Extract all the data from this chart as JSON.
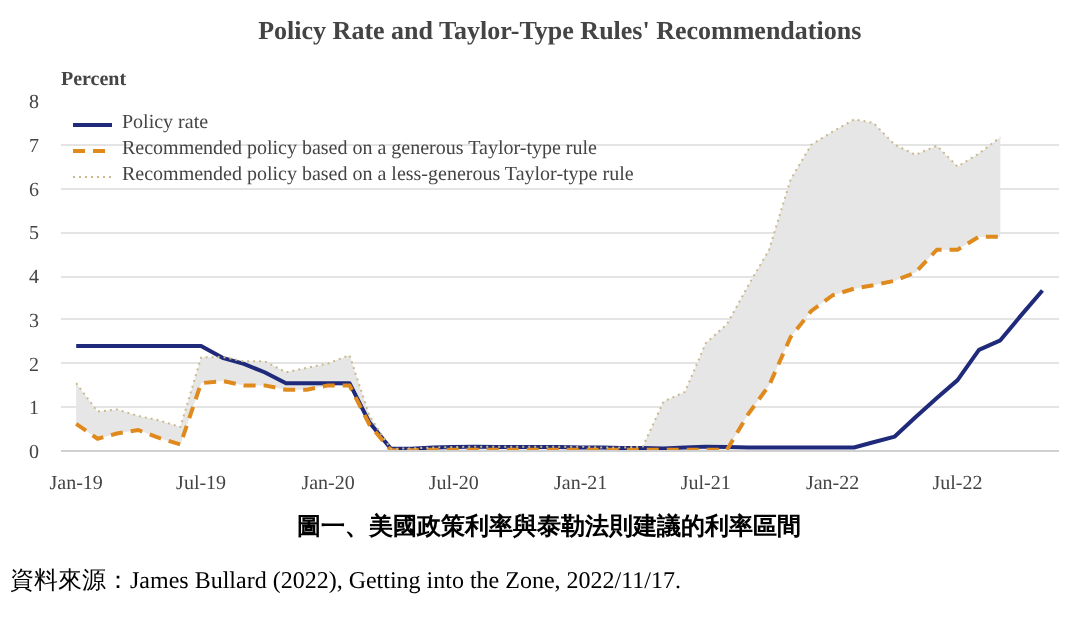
{
  "chart_data": {
    "type": "line",
    "title": "Policy Rate and Taylor-Type Rules' Recommendations",
    "ylabel": "Percent",
    "xlim": [
      "2018-12-10",
      "2022-11-25"
    ],
    "ylim": [
      0,
      8
    ],
    "yticks": [
      0,
      1,
      2,
      3,
      4,
      5,
      6,
      7,
      8
    ],
    "xticks": [
      {
        "value": "2019-01",
        "label": "Jan-19"
      },
      {
        "value": "2019-07",
        "label": "Jul-19"
      },
      {
        "value": "2020-01",
        "label": "Jan-20"
      },
      {
        "value": "2020-07",
        "label": "Jul-20"
      },
      {
        "value": "2021-01",
        "label": "Jan-21"
      },
      {
        "value": "2021-07",
        "label": "Jul-21"
      },
      {
        "value": "2022-01",
        "label": "Jan-22"
      },
      {
        "value": "2022-07",
        "label": "Jul-22"
      }
    ],
    "grid": "y",
    "legend": "top left",
    "marker": "none",
    "series": [
      {
        "name": "Policy rate",
        "color": "#1f2a7a",
        "line_style": "solid",
        "x": [
          "2019-01",
          "2019-02",
          "2019-03",
          "2019-04",
          "2019-05",
          "2019-06",
          "2019-07",
          "2019-08",
          "2019-09",
          "2019-10",
          "2019-11",
          "2019-12",
          "2020-01",
          "2020-02",
          "2020-03",
          "2020-04",
          "2020-05",
          "2020-06",
          "2020-07",
          "2020-08",
          "2020-09",
          "2020-10",
          "2020-11",
          "2020-12",
          "2021-01",
          "2021-02",
          "2021-03",
          "2021-04",
          "2021-05",
          "2021-06",
          "2021-07",
          "2021-08",
          "2021-09",
          "2021-10",
          "2021-11",
          "2021-12",
          "2022-01",
          "2022-02",
          "2022-03",
          "2022-04",
          "2022-05",
          "2022-06",
          "2022-07",
          "2022-08",
          "2022-09",
          "2022-10",
          "2022-11"
        ],
        "values": [
          2.4,
          2.4,
          2.4,
          2.4,
          2.4,
          2.4,
          2.4,
          2.13,
          1.99,
          1.8,
          1.55,
          1.55,
          1.55,
          1.55,
          0.65,
          0.05,
          0.05,
          0.08,
          0.09,
          0.1,
          0.09,
          0.09,
          0.09,
          0.09,
          0.08,
          0.08,
          0.07,
          0.07,
          0.06,
          0.08,
          0.1,
          0.09,
          0.08,
          0.08,
          0.08,
          0.08,
          0.08,
          0.08,
          0.2,
          0.33,
          0.77,
          1.21,
          1.62,
          2.31,
          2.53,
          3.1,
          3.67
        ]
      },
      {
        "name": "Recommended policy based on a generous Taylor-type rule",
        "color": "#e08a1e",
        "line_style": "dashed",
        "x": [
          "2019-01",
          "2019-02",
          "2019-03",
          "2019-04",
          "2019-05",
          "2019-06",
          "2019-07",
          "2019-08",
          "2019-09",
          "2019-10",
          "2019-11",
          "2019-12",
          "2020-01",
          "2020-02",
          "2020-03",
          "2020-04",
          "2020-05",
          "2020-06",
          "2020-07",
          "2020-08",
          "2020-09",
          "2020-10",
          "2020-11",
          "2020-12",
          "2021-01",
          "2021-02",
          "2021-03",
          "2021-04",
          "2021-05",
          "2021-06",
          "2021-07",
          "2021-08",
          "2021-09",
          "2021-10",
          "2021-11",
          "2021-12",
          "2022-01",
          "2022-02",
          "2022-03",
          "2022-04",
          "2022-05",
          "2022-06",
          "2022-07",
          "2022-08",
          "2022-09"
        ],
        "values": [
          0.62,
          0.28,
          0.4,
          0.48,
          0.3,
          0.15,
          1.55,
          1.6,
          1.5,
          1.5,
          1.4,
          1.4,
          1.5,
          1.5,
          0.6,
          0.02,
          0.02,
          0.03,
          0.03,
          0.03,
          0.03,
          0.03,
          0.03,
          0.03,
          0.03,
          0.03,
          0.03,
          0.03,
          0.03,
          0.03,
          0.03,
          0.03,
          0.85,
          1.5,
          2.6,
          3.2,
          3.56,
          3.71,
          3.79,
          3.89,
          4.08,
          4.6,
          4.6,
          4.9,
          4.9
        ]
      },
      {
        "name": "Recommended policy based on a less-generous Taylor-type rule",
        "color": "#c9b98c",
        "line_style": "dotted",
        "x": [
          "2019-01",
          "2019-02",
          "2019-03",
          "2019-04",
          "2019-05",
          "2019-06",
          "2019-07",
          "2019-08",
          "2019-09",
          "2019-10",
          "2019-11",
          "2019-12",
          "2020-01",
          "2020-02",
          "2020-03",
          "2020-04",
          "2020-05",
          "2020-06",
          "2020-07",
          "2020-08",
          "2020-09",
          "2020-10",
          "2020-11",
          "2020-12",
          "2021-01",
          "2021-02",
          "2021-03",
          "2021-04",
          "2021-05",
          "2021-06",
          "2021-07",
          "2021-08",
          "2021-09",
          "2021-10",
          "2021-11",
          "2021-12",
          "2022-01",
          "2022-02",
          "2022-03",
          "2022-04",
          "2022-05",
          "2022-06",
          "2022-07",
          "2022-08",
          "2022-09"
        ],
        "values": [
          1.55,
          0.9,
          0.95,
          0.8,
          0.7,
          0.55,
          2.14,
          2.15,
          2.05,
          2.05,
          1.8,
          1.9,
          2.0,
          2.19,
          0.8,
          0.05,
          0.06,
          0.08,
          0.09,
          0.1,
          0.1,
          0.1,
          0.1,
          0.1,
          0.1,
          0.08,
          0.08,
          0.1,
          1.13,
          1.35,
          2.46,
          2.9,
          3.79,
          4.6,
          6.2,
          7.0,
          7.3,
          7.58,
          7.5,
          7.0,
          6.77,
          6.98,
          6.5,
          6.8,
          7.17
        ],
        "lower": [
          0.62,
          0.28,
          0.4,
          0.48,
          0.3,
          0.15,
          1.55,
          1.6,
          1.5,
          1.5,
          1.4,
          1.4,
          1.5,
          1.5,
          0.6,
          0.02,
          0.02,
          0.03,
          0.03,
          0.03,
          0.03,
          0.03,
          0.03,
          0.03,
          0.03,
          0.03,
          0.03,
          0.03,
          0.03,
          0.03,
          0.03,
          0.03,
          0.85,
          1.5,
          2.6,
          3.2,
          3.56,
          3.71,
          3.79,
          3.89,
          4.08,
          4.6,
          4.6,
          4.9,
          4.9
        ],
        "upper": [
          1.55,
          0.9,
          0.95,
          0.8,
          0.7,
          0.55,
          2.14,
          2.15,
          2.05,
          2.05,
          1.8,
          1.9,
          2.0,
          2.19,
          0.8,
          0.05,
          0.06,
          0.08,
          0.09,
          0.1,
          0.1,
          0.1,
          0.1,
          0.1,
          0.1,
          0.08,
          0.08,
          0.1,
          1.13,
          1.35,
          2.46,
          2.9,
          3.79,
          4.6,
          6.2,
          7.0,
          7.3,
          7.58,
          7.5,
          7.0,
          6.77,
          6.98,
          6.5,
          6.8,
          7.17
        ]
      }
    ],
    "annotations": [
      "圖一、美國政策利率與泰勒法則建議的利率區間",
      "資料來源：James Bullard (2022), Getting into the Zone, 2022/11/17."
    ]
  }
}
